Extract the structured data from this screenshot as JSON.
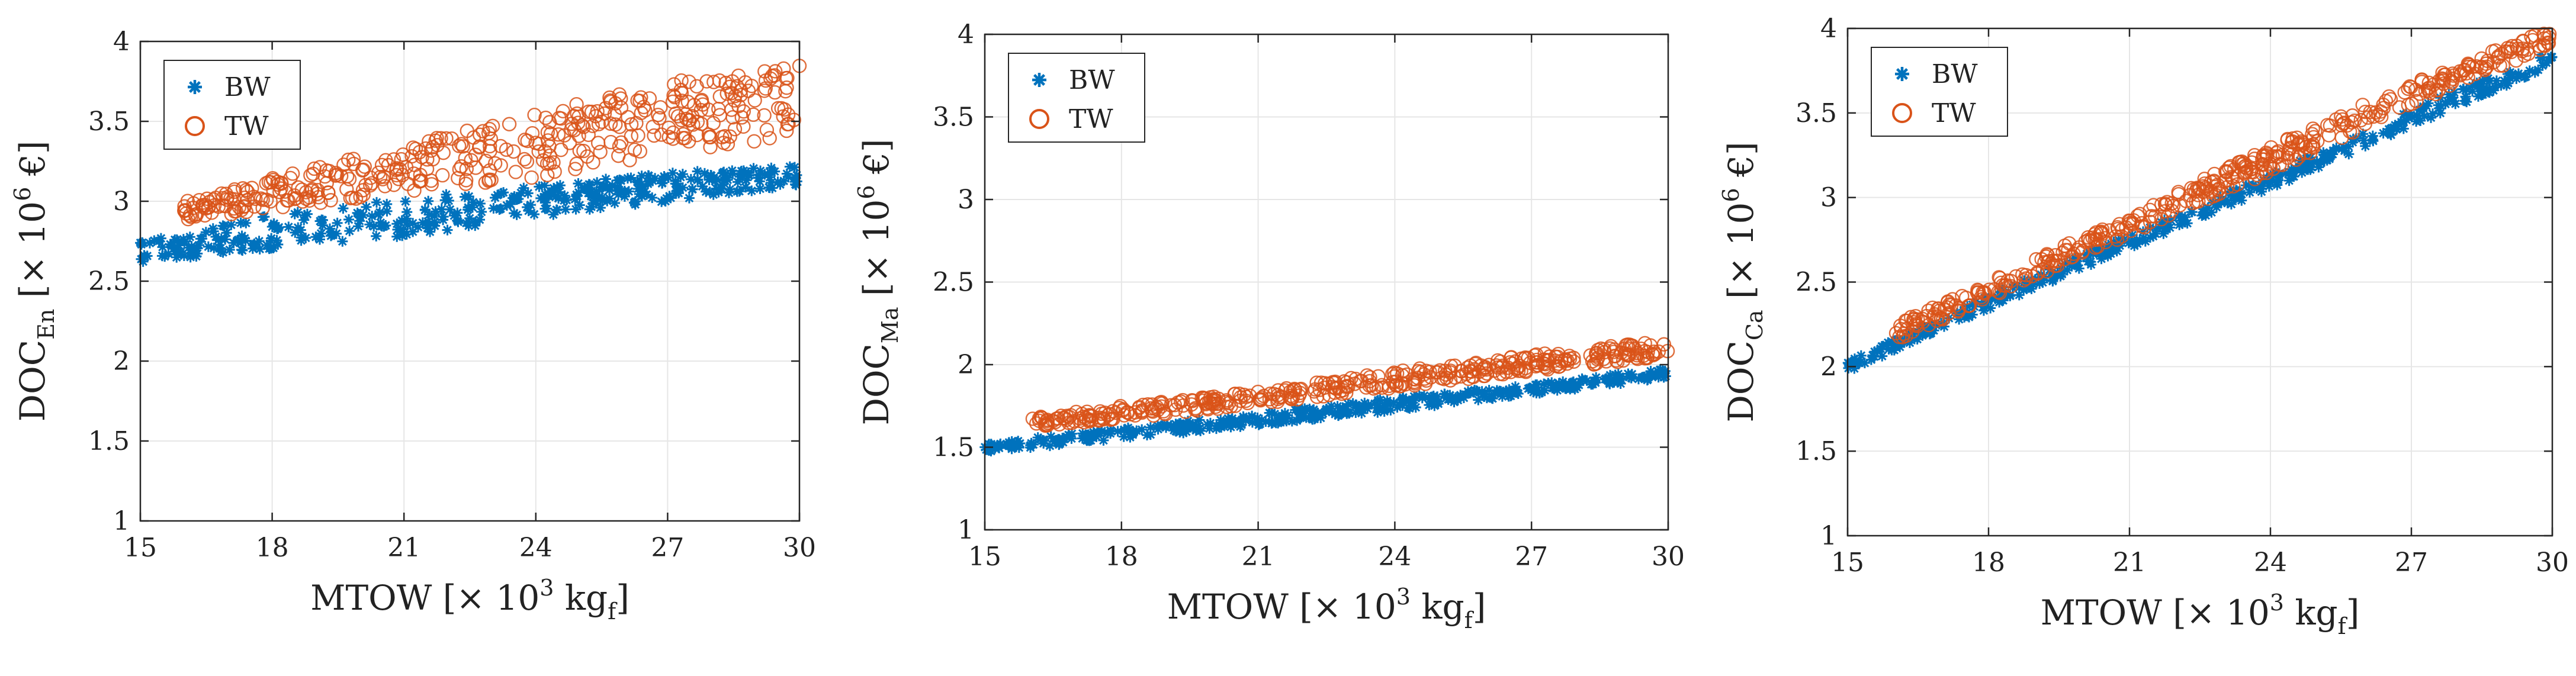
{
  "colors": {
    "bw": "#0072BD",
    "tw": "#D95319",
    "grid": "#e6e6e6",
    "axis": "#262626"
  },
  "chart_data": [
    {
      "type": "scatter",
      "xlabel": {
        "main": "MTOW [× 10",
        "sup": "3",
        "unit": " kg",
        "sub": "f",
        "close": "]"
      },
      "ylabel": {
        "main": "DOC",
        "sub": "En",
        "unit": " [× 10",
        "sup": "6",
        "close": " €]"
      },
      "xlim": [
        15,
        30
      ],
      "ylim": [
        1,
        4
      ],
      "xticks": [
        "15",
        "18",
        "21",
        "24",
        "27",
        "30"
      ],
      "yticks": [
        "1",
        "1.5",
        "2",
        "2.5",
        "3",
        "3.5",
        "4"
      ],
      "legend": [
        "BW",
        "TW"
      ],
      "series": [
        {
          "name": "BW",
          "marker": "asterisk",
          "lower": [
            [
              15,
              2.62
            ],
            [
              18,
              2.7
            ],
            [
              21,
              2.78
            ],
            [
              24,
              2.9
            ],
            [
              27,
              3.0
            ],
            [
              30,
              3.1
            ]
          ],
          "upper": [
            [
              15,
              2.75
            ],
            [
              18,
              2.92
            ],
            [
              21,
              3.02
            ],
            [
              24,
              3.1
            ],
            [
              27,
              3.18
            ],
            [
              30,
              3.22
            ]
          ]
        },
        {
          "name": "TW",
          "marker": "circle",
          "xstart": 16,
          "lower": [
            [
              16,
              2.88
            ],
            [
              18,
              2.95
            ],
            [
              21,
              3.05
            ],
            [
              24,
              3.15
            ],
            [
              27,
              3.3
            ],
            [
              30,
              3.4
            ]
          ],
          "upper": [
            [
              16,
              3.0
            ],
            [
              18,
              3.15
            ],
            [
              21,
              3.35
            ],
            [
              24,
              3.55
            ],
            [
              27,
              3.75
            ],
            [
              30,
              3.85
            ]
          ]
        }
      ]
    },
    {
      "type": "scatter",
      "xlabel": {
        "main": "MTOW [× 10",
        "sup": "3",
        "unit": " kg",
        "sub": "f",
        "close": "]"
      },
      "ylabel": {
        "main": "DOC",
        "sub": "Ma",
        "unit": " [× 10",
        "sup": "6",
        "close": " €]"
      },
      "xlim": [
        15,
        30
      ],
      "ylim": [
        1,
        4
      ],
      "xticks": [
        "15",
        "18",
        "21",
        "24",
        "27",
        "30"
      ],
      "yticks": [
        "1",
        "1.5",
        "2",
        "2.5",
        "3",
        "3.5",
        "4"
      ],
      "legend": [
        "BW",
        "TW"
      ],
      "series": [
        {
          "name": "BW",
          "marker": "asterisk",
          "lower": [
            [
              15,
              1.47
            ],
            [
              18,
              1.55
            ],
            [
              21,
              1.63
            ],
            [
              24,
              1.72
            ],
            [
              27,
              1.82
            ],
            [
              30,
              1.92
            ]
          ],
          "upper": [
            [
              15,
              1.52
            ],
            [
              18,
              1.62
            ],
            [
              21,
              1.7
            ],
            [
              24,
              1.8
            ],
            [
              27,
              1.88
            ],
            [
              30,
              1.98
            ]
          ]
        },
        {
          "name": "TW",
          "marker": "circle",
          "xstart": 16,
          "lower": [
            [
              16,
              1.62
            ],
            [
              18,
              1.67
            ],
            [
              21,
              1.76
            ],
            [
              24,
              1.86
            ],
            [
              27,
              1.96
            ],
            [
              30,
              2.05
            ]
          ],
          "upper": [
            [
              16,
              1.68
            ],
            [
              18,
              1.75
            ],
            [
              21,
              1.84
            ],
            [
              24,
              1.96
            ],
            [
              27,
              2.06
            ],
            [
              30,
              2.15
            ]
          ]
        }
      ]
    },
    {
      "type": "scatter",
      "xlabel": {
        "main": "MTOW [× 10",
        "sup": "3",
        "unit": " kg",
        "sub": "f",
        "close": "]"
      },
      "ylabel": {
        "main": "DOC",
        "sub": "Ca",
        "unit": " [× 10",
        "sup": "6",
        "close": " €]"
      },
      "xlim": [
        15,
        30
      ],
      "ylim": [
        1,
        4
      ],
      "xticks": [
        "15",
        "18",
        "21",
        "24",
        "27",
        "30"
      ],
      "yticks": [
        "1",
        "1.5",
        "2",
        "2.5",
        "3",
        "3.5",
        "4"
      ],
      "legend": [
        "BW",
        "TW"
      ],
      "series": [
        {
          "name": "BW",
          "marker": "asterisk",
          "lower": [
            [
              15,
              1.97
            ],
            [
              18,
              2.34
            ],
            [
              21,
              2.7
            ],
            [
              24,
              3.05
            ],
            [
              27,
              3.42
            ],
            [
              30,
              3.78
            ]
          ],
          "upper": [
            [
              15,
              2.03
            ],
            [
              18,
              2.42
            ],
            [
              21,
              2.78
            ],
            [
              24,
              3.14
            ],
            [
              27,
              3.52
            ],
            [
              30,
              3.86
            ]
          ]
        },
        {
          "name": "TW",
          "marker": "circle",
          "xstart": 16,
          "lower": [
            [
              16,
              2.15
            ],
            [
              18,
              2.4
            ],
            [
              21,
              2.78
            ],
            [
              24,
              3.15
            ],
            [
              27,
              3.55
            ],
            [
              30,
              3.9
            ]
          ],
          "upper": [
            [
              16,
              2.25
            ],
            [
              18,
              2.5
            ],
            [
              21,
              2.9
            ],
            [
              24,
              3.3
            ],
            [
              27,
              3.68
            ],
            [
              30,
              4.0
            ]
          ]
        }
      ]
    }
  ]
}
